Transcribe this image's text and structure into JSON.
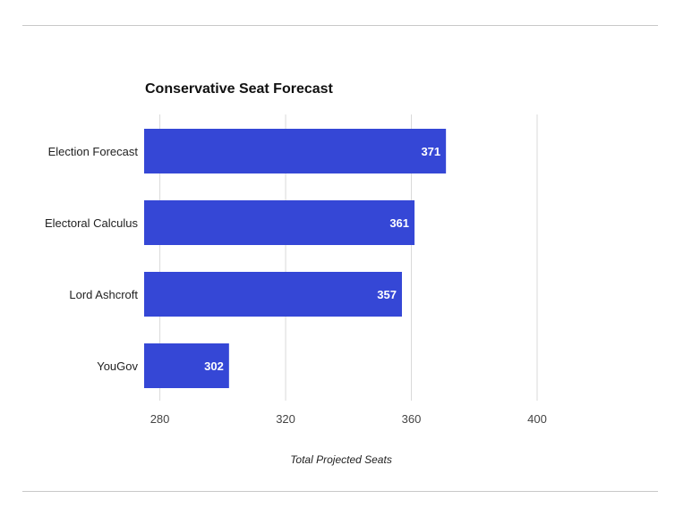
{
  "chart_data": {
    "type": "bar",
    "orientation": "horizontal",
    "title": "Conservative Seat Forecast",
    "xlabel": "Total Projected Seats",
    "ylabel": "",
    "categories": [
      "Election Forecast",
      "Electoral Calculus",
      "Lord Ashcroft",
      "YouGov"
    ],
    "values": [
      371,
      361,
      357,
      302
    ],
    "data_labels": [
      "371",
      "361",
      "357",
      "302"
    ],
    "xlim": [
      275,
      400
    ],
    "ticks": [
      280,
      320,
      360,
      400
    ],
    "tick_labels": [
      "280",
      "320",
      "360",
      "400"
    ],
    "grid": true,
    "legend": "none",
    "bar_color": "#3547d6"
  }
}
